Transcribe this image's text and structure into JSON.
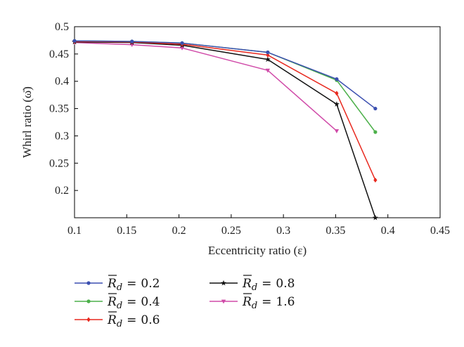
{
  "chart_data": {
    "type": "line",
    "xlabel": "Eccentricity ratio (ε)",
    "ylabel": "Whirl ratio (ω̄)",
    "xlim": [
      0.1,
      0.45
    ],
    "ylim": [
      0.15,
      0.5
    ],
    "xticks": [
      0.1,
      0.15,
      0.2,
      0.25,
      0.3,
      0.35,
      0.4,
      0.45
    ],
    "yticks": [
      0.2,
      0.25,
      0.3,
      0.35,
      0.4,
      0.45,
      0.5
    ],
    "xtick_labels": [
      "0.1",
      "0.15",
      "0.2",
      "0.25",
      "0.3",
      "0.35",
      "0.4",
      "0.45"
    ],
    "ytick_labels": [
      "0.2",
      "0.25",
      "0.3",
      "0.35",
      "0.4",
      "0.45",
      "0.5"
    ],
    "grid": false,
    "legend_placement": "below",
    "series": [
      {
        "name": "0.2",
        "color": "#3b4fb0",
        "marker": "dot",
        "x": [
          0.1,
          0.155,
          0.203,
          0.285,
          0.351,
          0.388
        ],
        "y": [
          0.474,
          0.473,
          0.47,
          0.453,
          0.404,
          0.35
        ]
      },
      {
        "name": "0.4",
        "color": "#4cb04a",
        "marker": "dot",
        "x": [
          0.1,
          0.155,
          0.203,
          0.285,
          0.351,
          0.388
        ],
        "y": [
          0.474,
          0.473,
          0.47,
          0.453,
          0.402,
          0.307
        ]
      },
      {
        "name": "0.6",
        "color": "#e8281e",
        "marker": "diamond",
        "x": [
          0.1,
          0.155,
          0.203,
          0.285,
          0.351,
          0.388
        ],
        "y": [
          0.473,
          0.472,
          0.468,
          0.448,
          0.378,
          0.219
        ]
      },
      {
        "name": "0.8",
        "color": "#111111",
        "marker": "star",
        "x": [
          0.1,
          0.155,
          0.203,
          0.285,
          0.351,
          0.388
        ],
        "y": [
          0.472,
          0.471,
          0.466,
          0.44,
          0.358,
          0.15
        ]
      },
      {
        "name": "1.6",
        "color": "#d04aa8",
        "marker": "triangle-down",
        "x": [
          0.1,
          0.155,
          0.203,
          0.285,
          0.351
        ],
        "y": [
          0.471,
          0.467,
          0.461,
          0.42,
          0.309
        ]
      }
    ],
    "legend": {
      "symbol": "R",
      "subscript": "d",
      "operator": "="
    }
  }
}
